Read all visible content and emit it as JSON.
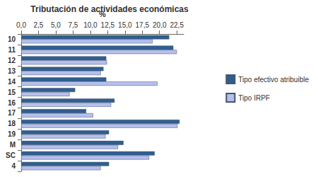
{
  "chart_data": {
    "type": "bar",
    "title": "Tributación de actividades económicas",
    "x_label": "%",
    "orientation": "horizontal",
    "categories": [
      "10",
      "11",
      "12",
      "13",
      "14",
      "15",
      "16",
      "17",
      "18",
      "19",
      "M",
      "SC",
      "4"
    ],
    "series": [
      {
        "name": "Tipo efectivo atribuible",
        "color": "#2f5f8f",
        "values": [
          21.4,
          22.0,
          12.3,
          11.9,
          12.3,
          7.8,
          13.5,
          9.4,
          22.9,
          12.7,
          14.8,
          19.3,
          12.7
        ]
      },
      {
        "name": "Tipo IRPF",
        "color": "#b6bfec",
        "values": [
          19.0,
          22.5,
          12.4,
          11.5,
          19.7,
          7.0,
          13.0,
          10.4,
          22.6,
          12.2,
          14.0,
          18.5,
          11.5
        ]
      }
    ],
    "xlim": [
      0,
      23.5
    ],
    "xticks": [
      {
        "value": 0,
        "label": "0,0"
      },
      {
        "value": 2.5,
        "label": "2,5"
      },
      {
        "value": 5,
        "label": "5,0"
      },
      {
        "value": 7.5,
        "label": "7,5"
      },
      {
        "value": 10,
        "label": "10,0"
      },
      {
        "value": 12.5,
        "label": "12,5"
      },
      {
        "value": 15,
        "label": "15,0"
      },
      {
        "value": 17.5,
        "label": "17,5"
      },
      {
        "value": 20,
        "label": "20,0"
      },
      {
        "value": 22.5,
        "label": "22,5"
      }
    ],
    "grid": false,
    "legend": "right"
  }
}
